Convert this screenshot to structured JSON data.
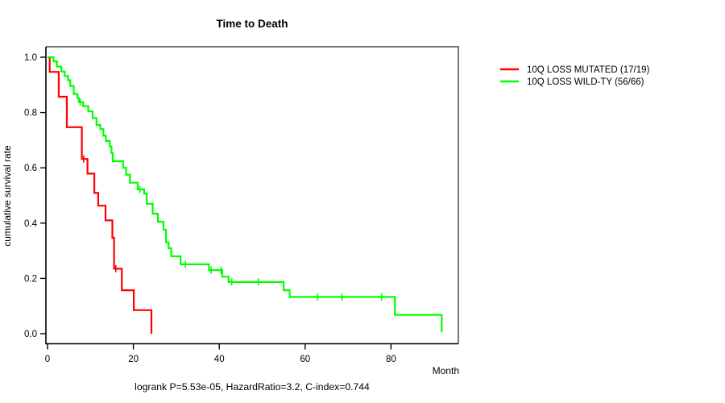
{
  "page": {
    "background": "#ffffff"
  },
  "chart_data": {
    "type": "line",
    "chart_style": "kaplan-meier-survival-step",
    "title": "Time to Death",
    "xlabel": "Month",
    "ylabel": "cumulative survival rate",
    "footnote": "logrank P=5.53e-05, HazardRatio=3.2, C-index=0.744",
    "xlim": [
      0,
      95
    ],
    "ylim": [
      0.0,
      1.0
    ],
    "x_ticks": [
      0,
      20,
      40,
      60,
      80
    ],
    "y_ticks": [
      "0.0",
      "0.2",
      "0.4",
      "0.6",
      "0.8",
      "1.0"
    ],
    "grid": false,
    "legend_position": "right-outside",
    "frame_color_top_right": "#757575",
    "frame_color_left_bottom": "#000000",
    "series": [
      {
        "name": "10Q LOSS MUTATED (17/19)",
        "color": "#ff0000",
        "steps": [
          [
            0,
            1.0
          ],
          [
            0.5,
            0.947
          ],
          [
            2.6,
            0.857
          ],
          [
            4.5,
            0.747
          ],
          [
            8.0,
            0.632
          ],
          [
            9.3,
            0.579
          ],
          [
            10.9,
            0.509
          ],
          [
            11.8,
            0.463
          ],
          [
            13.5,
            0.41
          ],
          [
            15.1,
            0.347
          ],
          [
            15.5,
            0.235
          ],
          [
            17.3,
            0.157
          ],
          [
            20.1,
            0.085
          ],
          [
            24.2,
            0.0
          ]
        ],
        "censor_marks": [
          [
            8.4,
            0.632
          ],
          [
            15.9,
            0.235
          ]
        ]
      },
      {
        "name": "10Q LOSS WILD-TY (56/66)",
        "color": "#00ff00",
        "steps": [
          [
            0,
            1.0
          ],
          [
            1.4,
            0.985
          ],
          [
            2.2,
            0.966
          ],
          [
            3.2,
            0.948
          ],
          [
            4.0,
            0.932
          ],
          [
            4.8,
            0.917
          ],
          [
            5.3,
            0.896
          ],
          [
            6.1,
            0.867
          ],
          [
            7.0,
            0.852
          ],
          [
            7.3,
            0.838
          ],
          [
            8.3,
            0.823
          ],
          [
            9.5,
            0.804
          ],
          [
            10.5,
            0.78
          ],
          [
            11.4,
            0.755
          ],
          [
            12.3,
            0.74
          ],
          [
            13.0,
            0.716
          ],
          [
            13.6,
            0.697
          ],
          [
            14.5,
            0.677
          ],
          [
            14.9,
            0.653
          ],
          [
            15.2,
            0.624
          ],
          [
            17.6,
            0.6
          ],
          [
            18.3,
            0.575
          ],
          [
            19.2,
            0.546
          ],
          [
            21.0,
            0.522
          ],
          [
            22.5,
            0.507
          ],
          [
            23.1,
            0.47
          ],
          [
            24.5,
            0.434
          ],
          [
            25.7,
            0.405
          ],
          [
            27.0,
            0.376
          ],
          [
            27.6,
            0.33
          ],
          [
            28.2,
            0.309
          ],
          [
            28.8,
            0.28
          ],
          [
            31.0,
            0.251
          ],
          [
            37.6,
            0.23
          ],
          [
            40.7,
            0.206
          ],
          [
            42.2,
            0.187
          ],
          [
            55.0,
            0.157
          ],
          [
            56.4,
            0.133
          ],
          [
            80.9,
            0.068
          ],
          [
            91.8,
            0.005
          ]
        ],
        "censor_marks": [
          [
            7.6,
            0.838
          ],
          [
            21.5,
            0.522
          ],
          [
            32.1,
            0.251
          ],
          [
            38.1,
            0.23
          ],
          [
            40.4,
            0.23
          ],
          [
            42.9,
            0.187
          ],
          [
            49.1,
            0.187
          ],
          [
            62.9,
            0.133
          ],
          [
            68.6,
            0.133
          ],
          [
            77.8,
            0.133
          ]
        ]
      }
    ]
  }
}
